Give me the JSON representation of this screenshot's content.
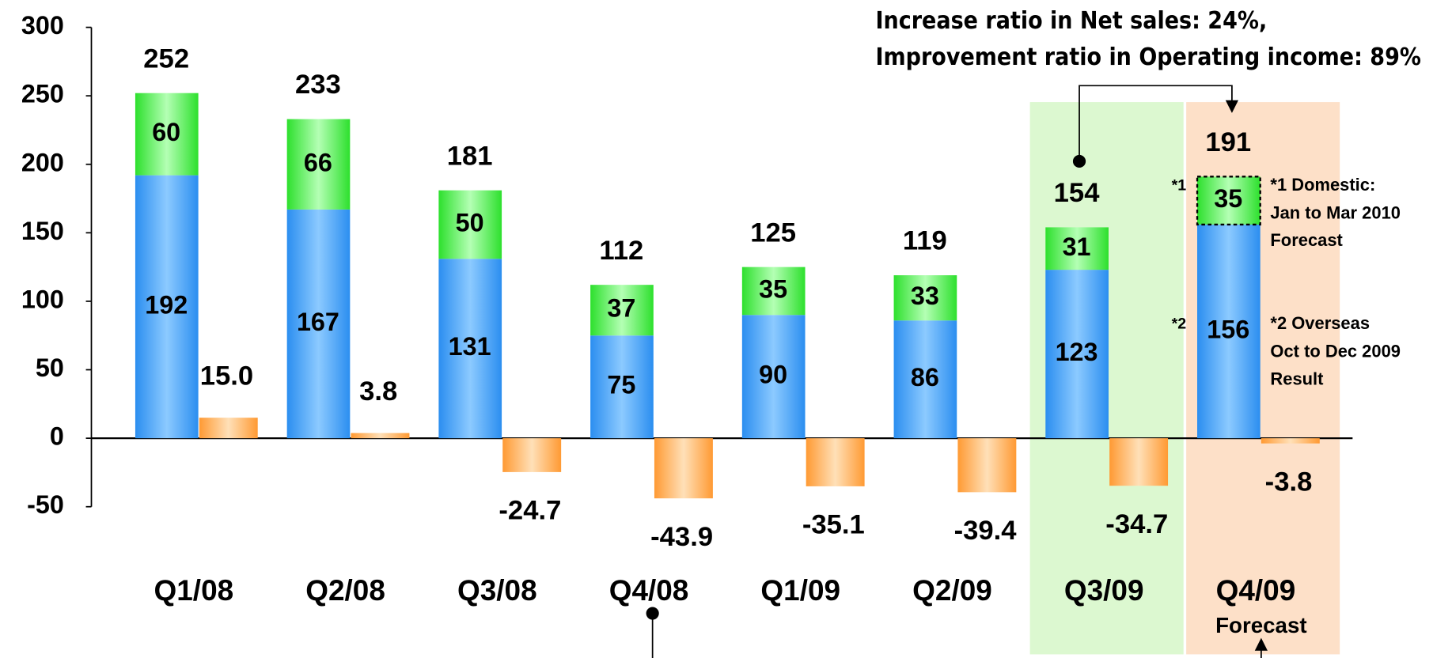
{
  "chart_data": {
    "type": "bar",
    "categories": [
      "Q1/08",
      "Q2/08",
      "Q3/08",
      "Q4/08",
      "Q1/09",
      "Q2/09",
      "Q3/09",
      "Q4/09"
    ],
    "series": [
      {
        "color": "#3d9cf5",
        "values": [
          192,
          167,
          131,
          75,
          90,
          86,
          123,
          156
        ]
      },
      {
        "color": "#3ced3c",
        "values": [
          60,
          66,
          50,
          37,
          35,
          33,
          31,
          35
        ]
      },
      {
        "color": "#ffa040",
        "values": [
          15.0,
          3.8,
          -24.7,
          -43.9,
          -35.1,
          -39.4,
          -34.7,
          -3.8
        ],
        "value_labels": [
          "15.0",
          "3.8",
          "-24.7",
          "-43.9",
          "-35.1",
          "-39.4",
          "-34.7",
          "-3.8"
        ]
      }
    ],
    "totals": [
      252,
      233,
      181,
      112,
      125,
      119,
      154,
      191
    ],
    "ylim": [
      -50,
      300
    ],
    "yticks": [
      -50,
      0,
      50,
      100,
      150,
      200,
      250,
      300
    ],
    "annotations": [
      "Increase ratio in Net sales: 24%,",
      "Improvement ratio in Operating income: 89%",
      "*1",
      "*1 Domestic:",
      "Jan to Mar 2010",
      "Forecast",
      "*2",
      "*2 Overseas",
      "Oct to Dec 2009",
      "Result",
      "Forecast"
    ]
  }
}
